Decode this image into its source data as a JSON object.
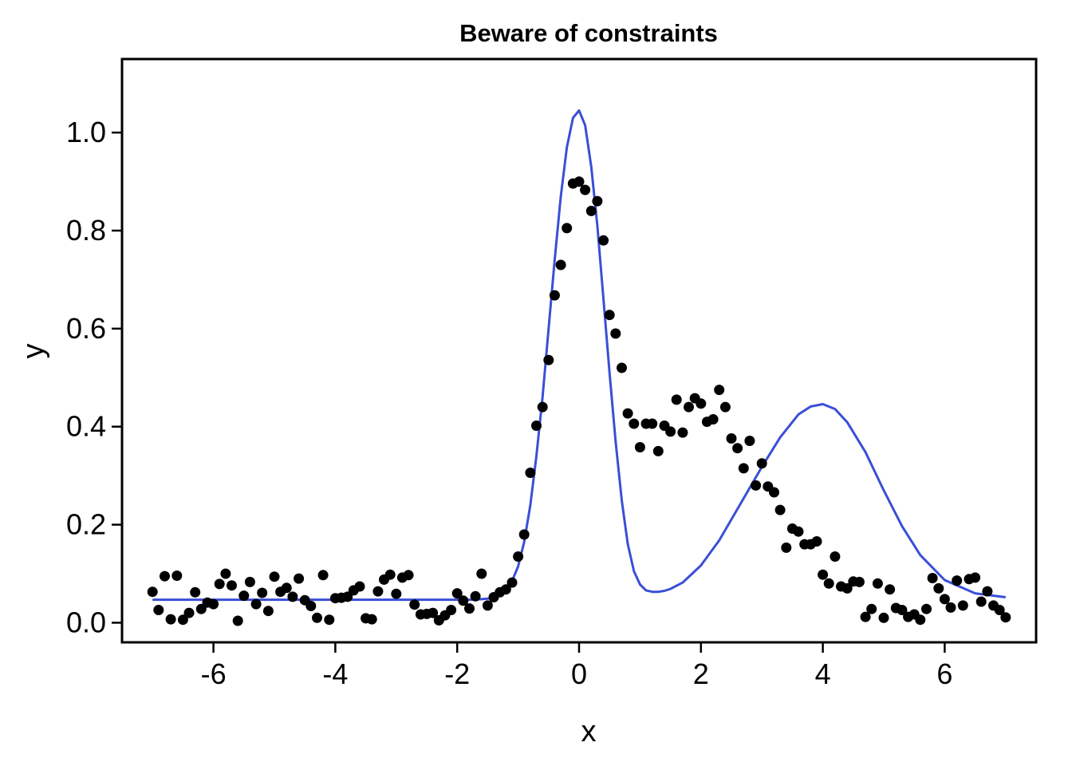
{
  "chart_data": {
    "type": "scatter",
    "title": "Beware of constraints",
    "xlabel": "x",
    "ylabel": "y",
    "xlim": [
      -7.5,
      7.5
    ],
    "ylim": [
      -0.04,
      1.15
    ],
    "grid": false,
    "legend": "none",
    "x_ticks": [
      "-6",
      "-4",
      "-2",
      "0",
      "2",
      "4",
      "6"
    ],
    "y_ticks": [
      "0.0",
      "0.2",
      "0.4",
      "0.6",
      "0.8",
      "1.0"
    ],
    "colors": {
      "points": "#000000",
      "fit": "#3a4fd6",
      "frame": "#000000"
    },
    "series": [
      {
        "kind": "points",
        "x": [
          -7.0,
          -6.9,
          -6.8,
          -6.7,
          -6.6,
          -6.5,
          -6.4,
          -6.3,
          -6.2,
          -6.1,
          -6.0,
          -5.9,
          -5.8,
          -5.7,
          -5.6,
          -5.5,
          -5.4,
          -5.3,
          -5.2,
          -5.1,
          -5.0,
          -4.9,
          -4.8,
          -4.7,
          -4.6,
          -4.5,
          -4.4,
          -4.3,
          -4.2,
          -4.1,
          -4.0,
          -3.9,
          -3.8,
          -3.7,
          -3.6,
          -3.5,
          -3.4,
          -3.3,
          -3.2,
          -3.1,
          -3.0,
          -2.9,
          -2.8,
          -2.7,
          -2.6,
          -2.5,
          -2.4,
          -2.3,
          -2.2,
          -2.1,
          -2.0,
          -1.9,
          -1.8,
          -1.7,
          -1.6,
          -1.5,
          -1.4,
          -1.3,
          -1.2,
          -1.1,
          -1.0,
          -0.9,
          -0.8,
          -0.7,
          -0.6,
          -0.5,
          -0.4,
          -0.3,
          -0.2,
          -0.1,
          0.0,
          0.1,
          0.2,
          0.3,
          0.4,
          0.5,
          0.6,
          0.7,
          0.8,
          0.9,
          1.0,
          1.1,
          1.2,
          1.3,
          1.4,
          1.5,
          1.6,
          1.7,
          1.8,
          1.9,
          2.0,
          2.1,
          2.2,
          2.3,
          2.4,
          2.5,
          2.6,
          2.7,
          2.8,
          2.9,
          3.0,
          3.1,
          3.2,
          3.3,
          3.4,
          3.5,
          3.6,
          3.7,
          3.8,
          3.9,
          4.0,
          4.1,
          4.2,
          4.3,
          4.4,
          4.5,
          4.6,
          4.7,
          4.8,
          4.9,
          5.0,
          5.1,
          5.2,
          5.3,
          5.4,
          5.5,
          5.6,
          5.7,
          5.8,
          5.9,
          6.0,
          6.1,
          6.2,
          6.3,
          6.4,
          6.5,
          6.6,
          6.7,
          6.8,
          6.9,
          7.0
        ],
        "y": [
          0.063,
          0.026,
          0.095,
          0.007,
          0.096,
          0.006,
          0.02,
          0.062,
          0.028,
          0.041,
          0.038,
          0.079,
          0.1,
          0.076,
          0.004,
          0.055,
          0.083,
          0.038,
          0.061,
          0.024,
          0.094,
          0.063,
          0.071,
          0.053,
          0.09,
          0.046,
          0.034,
          0.01,
          0.097,
          0.006,
          0.05,
          0.051,
          0.053,
          0.066,
          0.074,
          0.009,
          0.007,
          0.064,
          0.088,
          0.098,
          0.059,
          0.092,
          0.097,
          0.037,
          0.017,
          0.018,
          0.02,
          0.005,
          0.015,
          0.026,
          0.06,
          0.045,
          0.029,
          0.054,
          0.1,
          0.035,
          0.052,
          0.062,
          0.068,
          0.082,
          0.135,
          0.18,
          0.306,
          0.402,
          0.44,
          0.536,
          0.668,
          0.73,
          0.805,
          0.896,
          0.9,
          0.883,
          0.84,
          0.86,
          0.78,
          0.628,
          0.59,
          0.52,
          0.427,
          0.406,
          0.358,
          0.406,
          0.406,
          0.35,
          0.402,
          0.39,
          0.455,
          0.388,
          0.44,
          0.458,
          0.447,
          0.41,
          0.415,
          0.475,
          0.44,
          0.376,
          0.356,
          0.315,
          0.371,
          0.28,
          0.325,
          0.278,
          0.266,
          0.23,
          0.153,
          0.192,
          0.186,
          0.16,
          0.16,
          0.166,
          0.098,
          0.08,
          0.135,
          0.074,
          0.07,
          0.084,
          0.083,
          0.012,
          0.028,
          0.08,
          0.01,
          0.068,
          0.03,
          0.026,
          0.012,
          0.017,
          0.006,
          0.028,
          0.091,
          0.07,
          0.048,
          0.031,
          0.086,
          0.035,
          0.089,
          0.092,
          0.043,
          0.064,
          0.035,
          0.026,
          0.011
        ]
      },
      {
        "kind": "line",
        "x": [
          -7.0,
          -6.5,
          -6.0,
          -5.5,
          -5.0,
          -4.5,
          -4.0,
          -3.5,
          -3.0,
          -2.5,
          -2.0,
          -1.8,
          -1.6,
          -1.5,
          -1.4,
          -1.3,
          -1.2,
          -1.1,
          -1.0,
          -0.9,
          -0.8,
          -0.7,
          -0.6,
          -0.5,
          -0.4,
          -0.3,
          -0.2,
          -0.1,
          0.0,
          0.1,
          0.2,
          0.3,
          0.4,
          0.5,
          0.6,
          0.7,
          0.8,
          0.9,
          1.0,
          1.1,
          1.2,
          1.3,
          1.4,
          1.5,
          1.7,
          2.0,
          2.3,
          2.6,
          3.0,
          3.3,
          3.6,
          3.8,
          4.0,
          4.2,
          4.4,
          4.7,
          5.0,
          5.3,
          5.6,
          6.0,
          6.5,
          7.0
        ],
        "y": [
          0.047,
          0.047,
          0.047,
          0.047,
          0.047,
          0.047,
          0.047,
          0.047,
          0.047,
          0.047,
          0.047,
          0.047,
          0.048,
          0.049,
          0.052,
          0.057,
          0.068,
          0.085,
          0.115,
          0.165,
          0.24,
          0.34,
          0.46,
          0.6,
          0.74,
          0.87,
          0.97,
          1.03,
          1.045,
          1.015,
          0.93,
          0.81,
          0.66,
          0.51,
          0.37,
          0.25,
          0.16,
          0.105,
          0.078,
          0.066,
          0.063,
          0.063,
          0.065,
          0.069,
          0.082,
          0.117,
          0.168,
          0.232,
          0.318,
          0.378,
          0.425,
          0.441,
          0.446,
          0.436,
          0.409,
          0.348,
          0.27,
          0.197,
          0.138,
          0.087,
          0.06,
          0.052
        ]
      }
    ]
  }
}
